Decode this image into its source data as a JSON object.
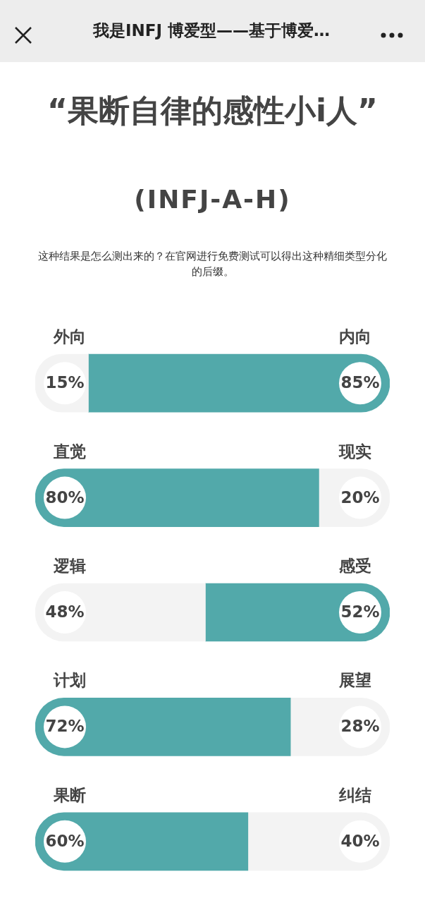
{
  "chart_data": {
    "type": "bar",
    "orientation": "horizontal",
    "stacked": true,
    "title": "“果断自律的感性小i人”",
    "subtitle": "(INFJ-A-H)",
    "annotations": [
      "我是INFJ 博爱型——基于博爱…",
      "这种结果是怎么测出来的？在官网进行免费测试可以得出这种精细类型分化的后缀。",
      "内向",
      "现实",
      "感受",
      "展望",
      "纠结"
    ],
    "categories": [
      "外向",
      "直觉",
      "逻辑",
      "计划",
      "果断"
    ],
    "series": [
      {
        "colors": [
          "#f3f3f3",
          "#52a9aa",
          "#f3f3f3",
          "#52a9aa",
          "#52a9aa"
        ],
        "values": [
          15,
          80,
          48,
          72,
          60
        ],
        "value_labels": [
          "15%",
          "80%",
          "48%",
          "72%",
          "60%"
        ]
      },
      {
        "colors": [
          "#52a9aa",
          "#f3f3f3",
          "#52a9aa",
          "#f3f3f3",
          "#f3f3f3"
        ],
        "values": [
          85,
          20,
          52,
          28,
          40
        ],
        "value_labels": [
          "85%",
          "20%",
          "52%",
          "28%",
          "40%"
        ]
      }
    ],
    "grid": false,
    "legend": false,
    "tick_labels": false
  }
}
